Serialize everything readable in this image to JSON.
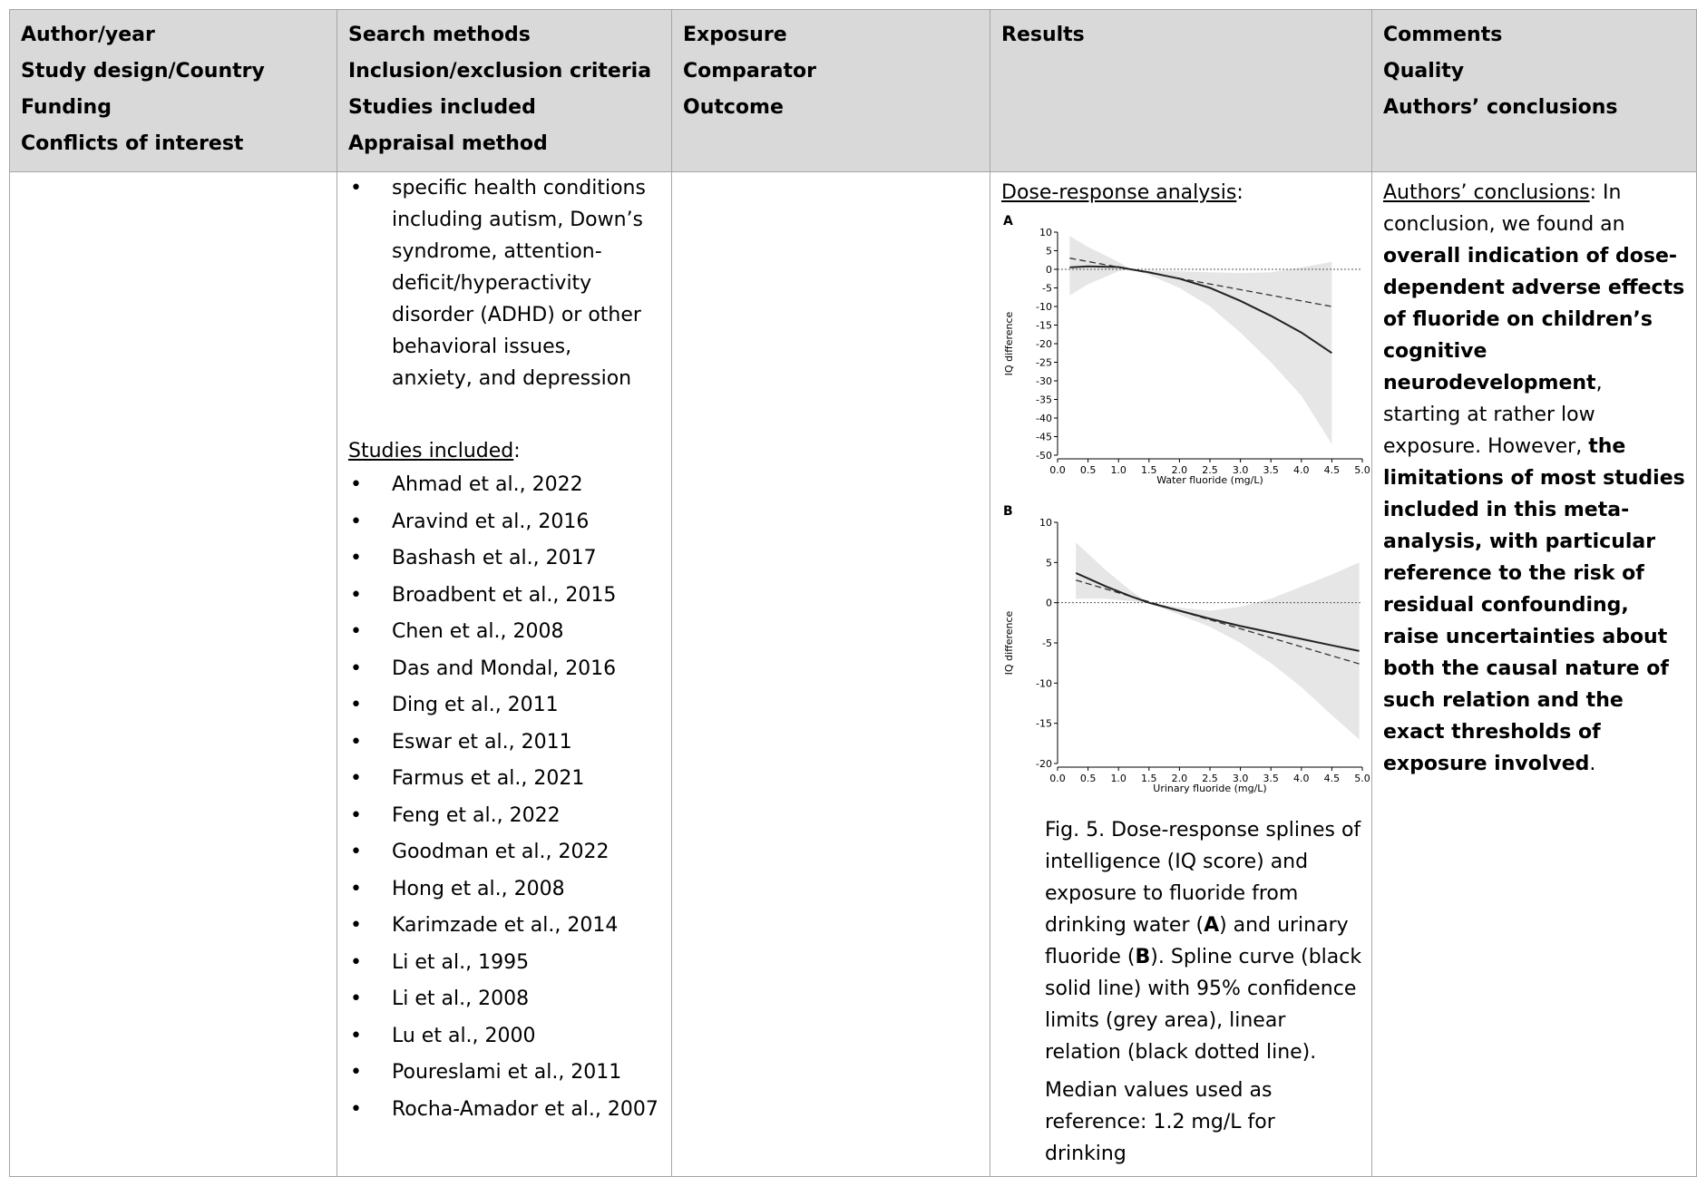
{
  "headers": {
    "col1": [
      "Author/year",
      "Study design/Country",
      "Funding",
      "Conflicts of interest"
    ],
    "col2": [
      "Search methods",
      "Inclusion/exclusion criteria",
      "Studies included",
      "Appraisal method"
    ],
    "col3": [
      "Exposure",
      "Comparator",
      "Outcome"
    ],
    "col4": [
      "Results"
    ],
    "col5": [
      "Comments",
      "Quality",
      "Authors’ conclusions"
    ]
  },
  "search_methods": {
    "condition_bullet": "specific health conditions including autism, Down’s syndrome, attention-deficit/hyperactivity disorder (ADHD) or other behavioral issues, anxiety, and depression",
    "studies_heading": "Studies included",
    "studies_colon": ":",
    "studies": [
      "Ahmad et al., 2022",
      "Aravind et al., 2016",
      "Bashash et al., 2017",
      "Broadbent et al., 2015",
      "Chen et al., 2008",
      "Das and Mondal, 2016",
      "Ding et al., 2011",
      "Eswar et al., 2011",
      "Farmus et al., 2021",
      "Feng et al., 2022",
      "Goodman et al., 2022",
      "Hong et al., 2008",
      "Karimzade et al., 2014",
      "Li et al., 1995",
      "Li et al., 2008",
      "Lu et al., 2000",
      "Poureslami et al., 2011",
      "Rocha-Amador et al., 2007"
    ]
  },
  "results": {
    "heading": "Dose-response analysis",
    "heading_colon": ":",
    "caption": {
      "part1": "Fig. 5. Dose-response splines of intelligence (IQ score) and exposure to fluoride from drinking water (",
      "bold_a": "A",
      "part2": ") and urinary fluoride (",
      "bold_b": "B",
      "part3": "). Spline curve (black solid line) with 95% confidence limits (grey area), linear relation (black dotted line)."
    },
    "median_note": "Median values used as reference: 1.2 mg/L for drinking"
  },
  "conclusions": {
    "label": "Authors’ conclusions",
    "label_colon": ":",
    "text1": " In conclusion, we found an ",
    "bold1": "overall indication of dose-dependent adverse effects of fluoride on children’s cognitive neurodevelopment",
    "text2": ", starting at rather low exposure. However, ",
    "bold2": "the limitations of most studies included in this meta-analysis, with particular reference to the risk of residual confounding, raise uncertainties about both the causal nature of such relation and the exact thresholds of exposure involved",
    "text3": "."
  },
  "chart_data": [
    {
      "type": "line",
      "panel": "A",
      "xlabel": "Water fluoride (mg/L)",
      "ylabel": "IQ difference",
      "xlim": [
        0,
        5
      ],
      "ylim": [
        -50,
        10
      ],
      "xticks": [
        "0.0",
        "0.5",
        "1.0",
        "1.5",
        "2.0",
        "2.5",
        "3.0",
        "3.5",
        "4.0",
        "4.5",
        "5.0"
      ],
      "yticks": [
        "10",
        "5",
        "0",
        "-5",
        "-10",
        "-15",
        "-20",
        "-25",
        "-30",
        "-35",
        "-40",
        "-45",
        "-50"
      ],
      "reference_line": 0,
      "spline": {
        "x": [
          0.2,
          0.5,
          1.0,
          1.2,
          1.5,
          2.0,
          2.5,
          3.0,
          3.5,
          4.0,
          4.5
        ],
        "y": [
          0.5,
          0.8,
          0.6,
          0.0,
          -0.8,
          -2.5,
          -5,
          -8.5,
          -12.5,
          -17,
          -22.5
        ]
      },
      "ci_upper": {
        "x": [
          0.2,
          0.5,
          1.0,
          1.2,
          1.5,
          2.0,
          2.5,
          3.0,
          3.5,
          4.0,
          4.5
        ],
        "y": [
          9,
          6,
          2,
          0.0,
          -0.3,
          -0.5,
          -0.8,
          -1.0,
          -0.8,
          0.5,
          2
        ]
      },
      "ci_lower": {
        "x": [
          0.2,
          0.5,
          1.0,
          1.2,
          1.5,
          2.0,
          2.5,
          3.0,
          3.5,
          4.0,
          4.5
        ],
        "y": [
          -7,
          -4,
          -0.5,
          0.0,
          -1.5,
          -5,
          -10,
          -17,
          -25,
          -34,
          -47
        ]
      },
      "linear": {
        "x": [
          0.2,
          4.5
        ],
        "y": [
          3,
          -10
        ]
      }
    },
    {
      "type": "line",
      "panel": "B",
      "xlabel": "Urinary fluoride (mg/L)",
      "ylabel": "IQ difference",
      "xlim": [
        0,
        5
      ],
      "ylim": [
        -20,
        10
      ],
      "xticks": [
        "0.0",
        "0.5",
        "1.0",
        "1.5",
        "2.0",
        "2.5",
        "3.0",
        "3.5",
        "4.0",
        "4.5",
        "5.0"
      ],
      "yticks": [
        "10",
        "5",
        "0",
        "-5",
        "-10",
        "-15",
        "-20"
      ],
      "reference_line": 0,
      "spline": {
        "x": [
          0.3,
          0.8,
          1.2,
          1.5,
          2.0,
          2.5,
          3.0,
          3.5,
          4.0,
          4.5,
          4.95
        ],
        "y": [
          3.7,
          2.0,
          0.8,
          0.0,
          -1.0,
          -2.0,
          -2.9,
          -3.7,
          -4.5,
          -5.3,
          -6.0
        ]
      },
      "ci_upper": {
        "x": [
          0.3,
          0.8,
          1.2,
          1.5,
          2.0,
          2.5,
          3.0,
          3.5,
          4.0,
          4.5,
          4.95
        ],
        "y": [
          7.5,
          4.0,
          1.5,
          0.0,
          -0.6,
          -1.0,
          -0.5,
          0.5,
          2,
          3.5,
          5
        ]
      },
      "ci_lower": {
        "x": [
          0.3,
          0.8,
          1.2,
          1.5,
          2.0,
          2.5,
          3.0,
          3.5,
          4.0,
          4.5,
          4.95
        ],
        "y": [
          0.5,
          0.5,
          0.2,
          0.0,
          -1.5,
          -3.0,
          -5,
          -7.5,
          -10.5,
          -14,
          -17
        ]
      },
      "linear": {
        "x": [
          0.3,
          4.95
        ],
        "y": [
          2.8,
          -7.6
        ]
      }
    }
  ]
}
